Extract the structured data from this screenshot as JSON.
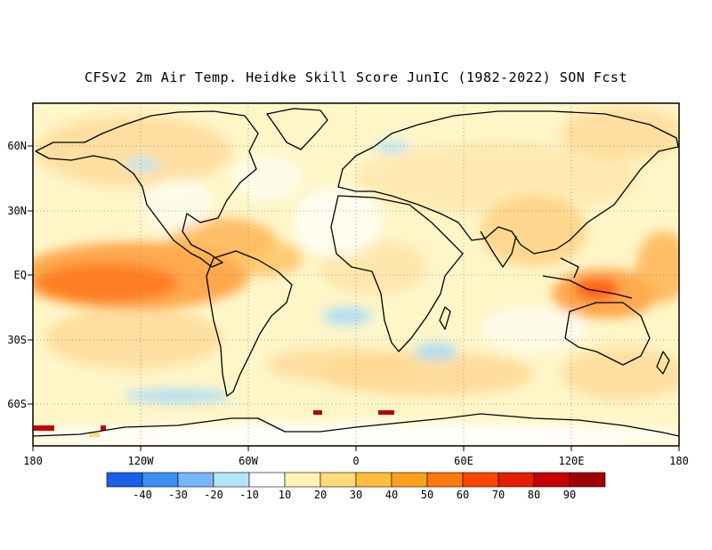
{
  "title": "CFSv2 2m Air Temp. Heidke Skill Score JunIC (1982-2022) SON Fcst",
  "map": {
    "lat_labels": [
      "60N",
      "30N",
      "EQ",
      "30S",
      "60S"
    ],
    "lon_labels": [
      "180",
      "120W",
      "60W",
      "0",
      "60E",
      "120E",
      "180"
    ]
  },
  "colorbar": {
    "bins": [
      {
        "color": "#1a5fe8"
      },
      {
        "color": "#3c8ff5"
      },
      {
        "color": "#78b4f8"
      },
      {
        "color": "#b4e6fa"
      },
      {
        "color": "#ffffff"
      },
      {
        "color": "#fff4b4"
      },
      {
        "color": "#ffdc78"
      },
      {
        "color": "#ffbe3c"
      },
      {
        "color": "#ffa01e"
      },
      {
        "color": "#ff780a"
      },
      {
        "color": "#ff4600"
      },
      {
        "color": "#e61e00"
      },
      {
        "color": "#c80000"
      },
      {
        "color": "#a00000"
      }
    ],
    "tick_labels": [
      "-40",
      "-30",
      "-20",
      "-10",
      "10",
      "20",
      "30",
      "40",
      "50",
      "60",
      "70",
      "80",
      "90"
    ]
  }
}
